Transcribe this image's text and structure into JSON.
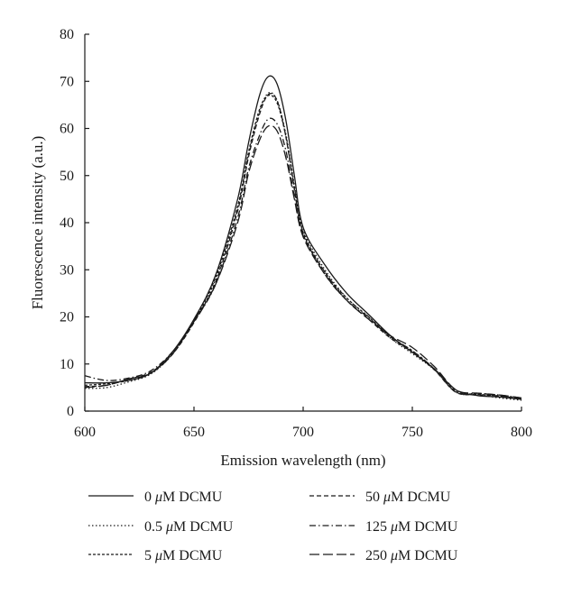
{
  "chart_data": {
    "type": "line",
    "title": "",
    "xlabel": "Emission wavelength (nm)",
    "ylabel": "Fluorescence intensity (a.u.)",
    "xlim": [
      600,
      800
    ],
    "ylim": [
      0,
      80
    ],
    "xticks": [
      600,
      650,
      700,
      750,
      800
    ],
    "yticks": [
      0,
      10,
      20,
      30,
      40,
      50,
      60,
      70,
      80
    ],
    "grid": false,
    "legend_position": "bottom",
    "x": [
      600,
      610,
      620,
      630,
      640,
      650,
      660,
      670,
      675,
      680,
      684,
      688,
      692,
      696,
      700,
      710,
      720,
      730,
      740,
      750,
      760,
      770,
      780,
      790,
      800
    ],
    "series": [
      {
        "name": "0 μM DCMU",
        "dash": "solid",
        "values": [
          6.0,
          6.0,
          6.5,
          8.0,
          12.5,
          19.5,
          29.0,
          45.0,
          57.0,
          67.0,
          71.0,
          69.5,
          62.0,
          50.0,
          39.0,
          31.0,
          25.0,
          20.5,
          16.0,
          12.5,
          9.0,
          4.5,
          3.3,
          3.0,
          2.5
        ]
      },
      {
        "name": "0.5 μM DCMU",
        "dash": "dotted",
        "values": [
          4.8,
          5.0,
          6.2,
          7.8,
          12.0,
          19.0,
          28.0,
          43.0,
          54.5,
          63.5,
          67.5,
          66.0,
          59.0,
          48.0,
          38.5,
          30.0,
          24.0,
          20.0,
          15.5,
          12.2,
          8.8,
          4.0,
          3.5,
          2.8,
          2.3
        ]
      },
      {
        "name": "5 μM DCMU",
        "dash": "short-dash",
        "values": [
          5.5,
          5.8,
          6.5,
          8.0,
          12.2,
          19.2,
          28.5,
          43.5,
          55.0,
          64.0,
          67.0,
          65.5,
          58.5,
          47.5,
          38.0,
          29.5,
          24.0,
          20.0,
          15.8,
          12.8,
          9.0,
          4.2,
          3.6,
          3.2,
          2.6
        ]
      },
      {
        "name": "50 μM DCMU",
        "dash": "dashed",
        "values": [
          5.2,
          5.5,
          6.8,
          8.2,
          12.0,
          18.8,
          27.5,
          42.5,
          54.0,
          63.0,
          67.2,
          66.0,
          58.5,
          47.0,
          37.5,
          29.5,
          23.5,
          19.5,
          15.5,
          12.5,
          8.8,
          4.0,
          3.5,
          3.2,
          2.6
        ]
      },
      {
        "name": "125 μM DCMU",
        "dash": "dash-dot",
        "values": [
          7.5,
          6.5,
          7.0,
          8.5,
          12.5,
          19.0,
          27.0,
          41.0,
          51.5,
          58.5,
          62.0,
          61.0,
          55.5,
          45.5,
          37.5,
          29.0,
          23.5,
          19.8,
          15.8,
          12.8,
          9.0,
          4.0,
          3.8,
          3.4,
          2.8
        ]
      },
      {
        "name": "250 μM DCMU",
        "dash": "long-dash",
        "values": [
          5.0,
          5.5,
          6.8,
          8.0,
          12.0,
          19.2,
          27.0,
          40.0,
          50.5,
          57.5,
          60.5,
          59.5,
          54.0,
          45.0,
          37.0,
          29.0,
          23.5,
          19.5,
          16.0,
          13.5,
          9.5,
          4.5,
          3.8,
          3.4,
          2.8
        ]
      }
    ]
  },
  "legend": [
    {
      "num": "0 ",
      "unit": "μ",
      "rest": "M DCMU",
      "dash": "solid"
    },
    {
      "num": "0.5 ",
      "unit": "μ",
      "rest": "M DCMU",
      "dash": "dotted"
    },
    {
      "num": "5 ",
      "unit": "μ",
      "rest": "M DCMU",
      "dash": "short-dash"
    },
    {
      "num": "50 ",
      "unit": "μ",
      "rest": "M DCMU",
      "dash": "dashed"
    },
    {
      "num": "125 ",
      "unit": "μ",
      "rest": "M DCMU",
      "dash": "dash-dot"
    },
    {
      "num": "250 ",
      "unit": "μ",
      "rest": "M DCMU",
      "dash": "long-dash"
    }
  ]
}
